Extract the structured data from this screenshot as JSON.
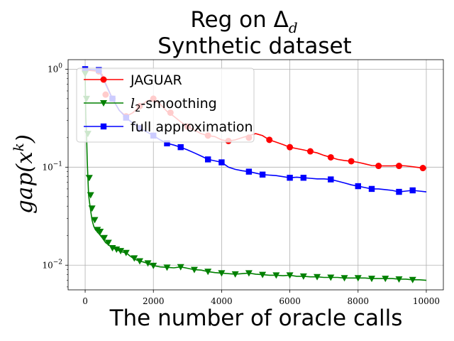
{
  "chart_data": {
    "type": "line",
    "title_line1": "Reg on Δ",
    "title_sub": "d",
    "title_line2": "Synthetic dataset",
    "xlabel": "The number of oracle calls",
    "ylabel": "gap(x",
    "ylabel_sup": "k",
    "ylabel_close": ")",
    "xlim": [
      -500,
      10500
    ],
    "ylim": [
      0.0056,
      1.25
    ],
    "yscale": "log",
    "grid": true,
    "legend_position": "upper-left",
    "x_ticks": [
      0,
      2000,
      4000,
      6000,
      8000,
      10000
    ],
    "x_tick_labels": [
      "0",
      "2000",
      "4000",
      "6000",
      "8000",
      "10000"
    ],
    "y_ticks": [
      0.01,
      0.1,
      1
    ],
    "y_tick_labels": [
      {
        "base": "10",
        "exp": "−2"
      },
      {
        "base": "10",
        "exp": "−1"
      },
      {
        "base": "10",
        "exp": "0"
      }
    ],
    "series": [
      {
        "name": "JAGUAR",
        "color": "#ff0000",
        "marker": "circle",
        "x": [
          0,
          400,
          500,
          600,
          800,
          1000,
          1200,
          1400,
          1600,
          1800,
          2000,
          2200,
          2400,
          2600,
          2800,
          3000,
          3200,
          3400,
          3600,
          3800,
          4000,
          4200,
          4400,
          4600,
          4800,
          5000,
          5200,
          5400,
          5600,
          5800,
          6000,
          6200,
          6400,
          6600,
          6800,
          7000,
          7200,
          7400,
          7600,
          7800,
          8000,
          8200,
          8400,
          8600,
          8800,
          9000,
          9200,
          9400,
          9600,
          9800,
          10000
        ],
        "y": [
          0.98,
          0.95,
          0.88,
          0.72,
          0.5,
          0.38,
          0.33,
          0.36,
          0.42,
          0.47,
          0.5,
          0.44,
          0.37,
          0.33,
          0.29,
          0.26,
          0.24,
          0.22,
          0.21,
          0.205,
          0.19,
          0.185,
          0.19,
          0.2,
          0.21,
          0.22,
          0.21,
          0.19,
          0.18,
          0.17,
          0.16,
          0.155,
          0.15,
          0.145,
          0.14,
          0.132,
          0.126,
          0.12,
          0.117,
          0.115,
          0.112,
          0.108,
          0.104,
          0.103,
          0.103,
          0.103,
          0.104,
          0.103,
          0.101,
          0.099,
          0.097
        ],
        "marker_x": [
          0,
          400,
          600,
          800,
          1200,
          1600,
          2000,
          2500,
          3000,
          3600,
          4200,
          4800,
          5400,
          6000,
          6600,
          7200,
          7800,
          8600,
          9200,
          9900
        ],
        "marker_y": [
          0.98,
          0.95,
          0.55,
          0.5,
          0.33,
          0.42,
          0.5,
          0.36,
          0.26,
          0.21,
          0.185,
          0.2,
          0.19,
          0.16,
          0.145,
          0.126,
          0.115,
          0.103,
          0.103,
          0.098
        ]
      },
      {
        "name": "full approximation",
        "color": "#0000ff",
        "marker": "square",
        "x": [
          0,
          400,
          600,
          800,
          1000,
          1200,
          1400,
          1600,
          1800,
          2000,
          2200,
          2400,
          2600,
          2800,
          3000,
          3200,
          3400,
          3600,
          3800,
          4000,
          4200,
          4400,
          4600,
          4800,
          5000,
          5200,
          5400,
          5600,
          5800,
          6000,
          6200,
          6400,
          6600,
          6800,
          7000,
          7200,
          7400,
          7600,
          7800,
          8000,
          8200,
          8400,
          8600,
          8800,
          9000,
          9200,
          9400,
          9600,
          9800,
          10000
        ],
        "y": [
          1.0,
          0.98,
          0.7,
          0.5,
          0.38,
          0.32,
          0.28,
          0.25,
          0.23,
          0.21,
          0.19,
          0.175,
          0.168,
          0.16,
          0.15,
          0.14,
          0.13,
          0.12,
          0.116,
          0.112,
          0.1,
          0.095,
          0.092,
          0.09,
          0.087,
          0.084,
          0.083,
          0.082,
          0.08,
          0.078,
          0.079,
          0.078,
          0.077,
          0.076,
          0.076,
          0.075,
          0.072,
          0.069,
          0.066,
          0.064,
          0.062,
          0.06,
          0.06,
          0.059,
          0.058,
          0.056,
          0.057,
          0.058,
          0.057,
          0.056
        ],
        "marker_x": [
          0,
          400,
          800,
          1200,
          1600,
          2000,
          2400,
          2800,
          3600,
          4000,
          4800,
          5200,
          6000,
          6400,
          7200,
          8000,
          8400,
          9200,
          9600
        ],
        "marker_y": [
          1.0,
          0.98,
          0.5,
          0.32,
          0.25,
          0.21,
          0.175,
          0.16,
          0.12,
          0.112,
          0.09,
          0.084,
          0.078,
          0.078,
          0.075,
          0.064,
          0.06,
          0.056,
          0.058
        ]
      },
      {
        "name": "l2-smoothing",
        "name_parts": {
          "l": "l",
          "sub": "2",
          "rest": "-smoothing"
        },
        "color": "#008000",
        "marker": "triangle-down",
        "x": [
          0,
          20,
          40,
          60,
          80,
          100,
          150,
          200,
          250,
          300,
          350,
          400,
          500,
          600,
          700,
          800,
          900,
          1000,
          1100,
          1200,
          1300,
          1400,
          1500,
          1600,
          1700,
          1800,
          1900,
          2000,
          2200,
          2400,
          2600,
          2800,
          3000,
          3200,
          3400,
          3600,
          3800,
          4000,
          4200,
          4400,
          4600,
          4800,
          5000,
          5200,
          5400,
          5600,
          5800,
          6000,
          6200,
          6400,
          6600,
          6800,
          7000,
          7200,
          7400,
          7600,
          7800,
          8000,
          8200,
          8400,
          8600,
          8800,
          9000,
          9200,
          9400,
          9600,
          9800,
          10000
        ],
        "y": [
          0.9,
          0.32,
          0.22,
          0.12,
          0.078,
          0.052,
          0.038,
          0.029,
          0.025,
          0.023,
          0.022,
          0.021,
          0.019,
          0.017,
          0.016,
          0.015,
          0.0145,
          0.014,
          0.0136,
          0.0134,
          0.0125,
          0.0118,
          0.0113,
          0.011,
          0.0108,
          0.0105,
          0.0102,
          0.0099,
          0.0096,
          0.0095,
          0.0094,
          0.0096,
          0.0093,
          0.009,
          0.0089,
          0.0086,
          0.0084,
          0.0083,
          0.0082,
          0.0081,
          0.0082,
          0.0083,
          0.0081,
          0.008,
          0.0079,
          0.0079,
          0.0078,
          0.0079,
          0.0077,
          0.0077,
          0.0076,
          0.0076,
          0.0075,
          0.0075,
          0.0075,
          0.0074,
          0.0074,
          0.0074,
          0.0074,
          0.0073,
          0.0073,
          0.0073,
          0.0073,
          0.0072,
          0.0072,
          0.0071,
          0.0071,
          0.007
        ],
        "marker_x": [
          0,
          40,
          80,
          120,
          160,
          200,
          280,
          360,
          440,
          560,
          680,
          800,
          920,
          1040,
          1200,
          1440,
          1600,
          1840,
          2000,
          2400,
          2800,
          3200,
          3600,
          4000,
          4400,
          4800,
          5200,
          5600,
          6000,
          6400,
          6800,
          7200,
          7600,
          8000,
          8400,
          8800,
          9200,
          9600
        ],
        "marker_y": [
          0.9,
          0.5,
          0.22,
          0.078,
          0.052,
          0.038,
          0.029,
          0.023,
          0.022,
          0.019,
          0.017,
          0.015,
          0.0145,
          0.014,
          0.0134,
          0.0118,
          0.011,
          0.0105,
          0.0099,
          0.0095,
          0.0096,
          0.009,
          0.0086,
          0.0083,
          0.0081,
          0.0083,
          0.008,
          0.0079,
          0.0079,
          0.0077,
          0.0076,
          0.0075,
          0.0074,
          0.0074,
          0.0073,
          0.0073,
          0.0072,
          0.0071
        ]
      }
    ],
    "legend_order": [
      0,
      2,
      1
    ]
  }
}
